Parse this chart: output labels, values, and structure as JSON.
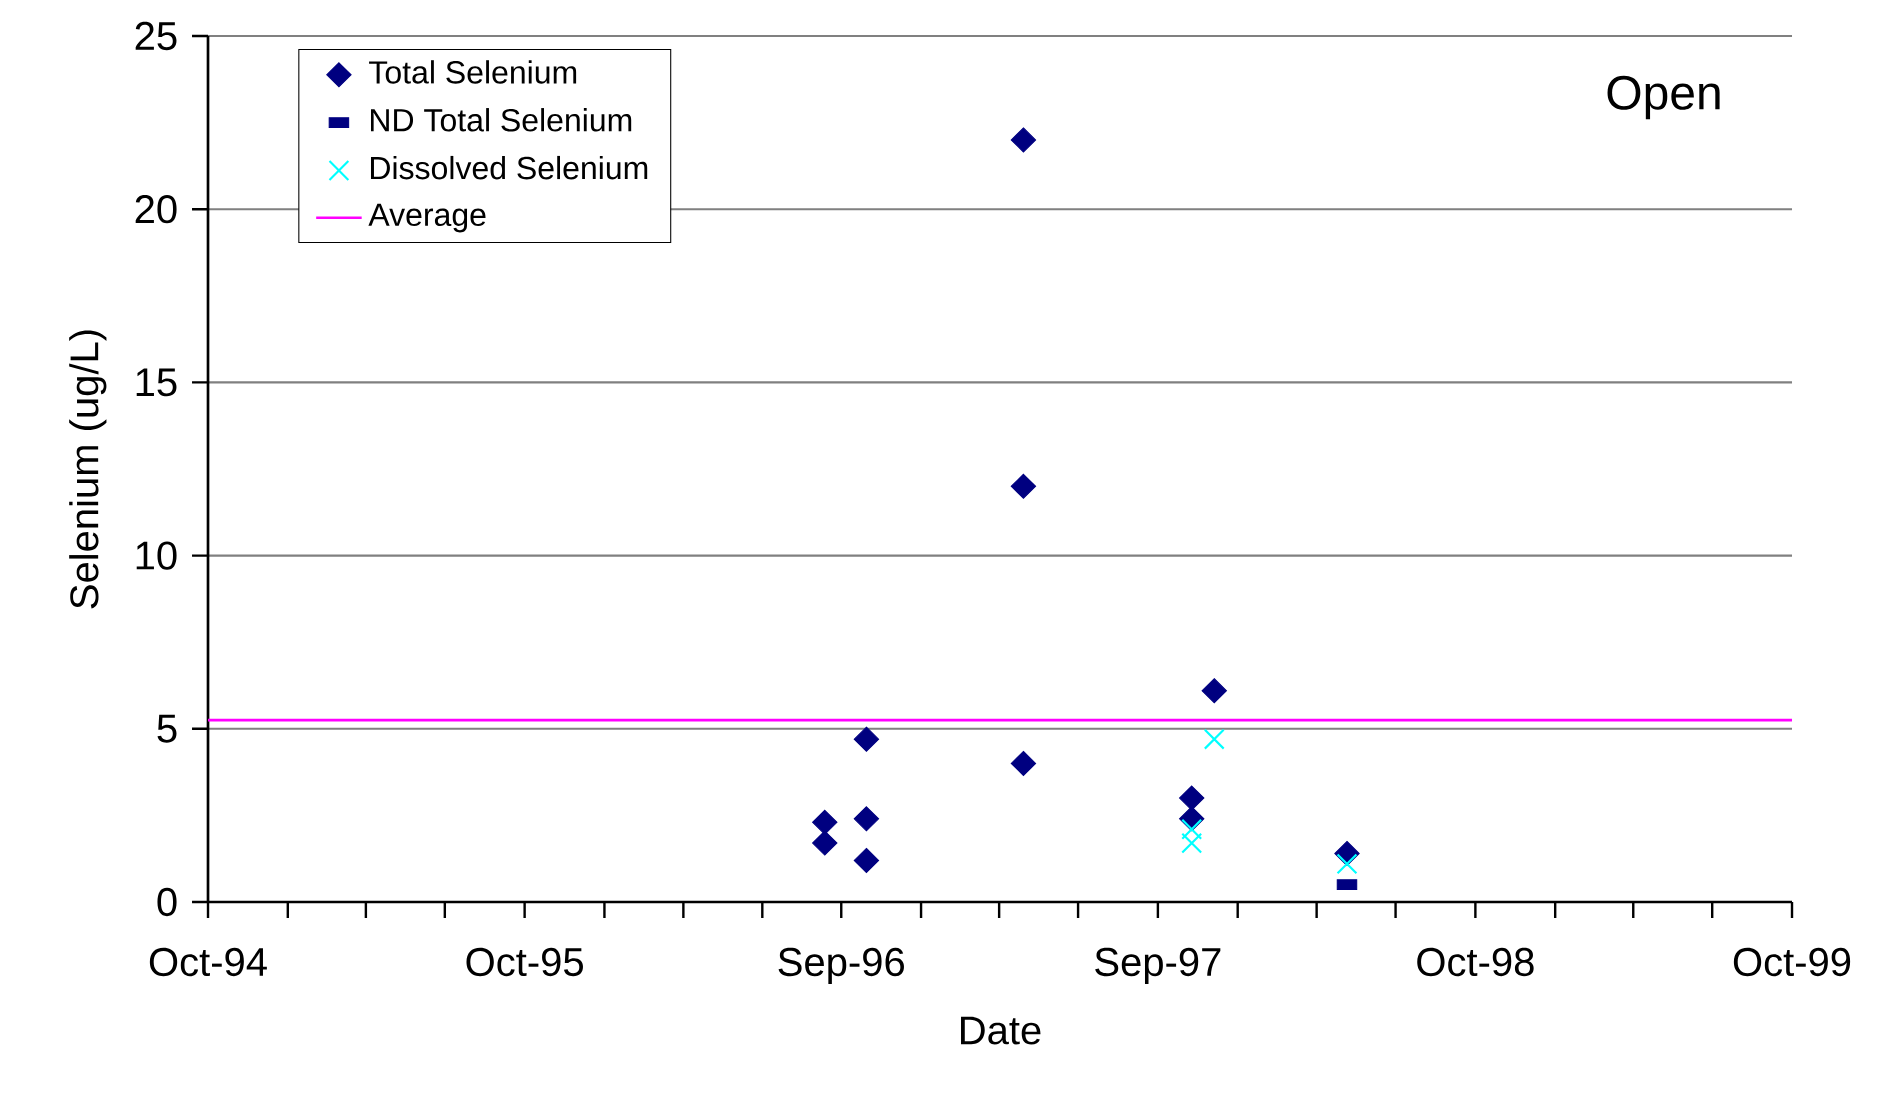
{
  "chart_data": {
    "type": "scatter",
    "xlabel": "Date",
    "ylabel": "Selenium (ug/L)",
    "annotations": [
      "Open"
    ],
    "series": [
      {
        "name": "Total Selenium",
        "color": "#000080",
        "marker": "diamond",
        "x": [
          "1996-09-11",
          "1996-09-11",
          "1996-10-29",
          "1996-10-29",
          "1996-10-29",
          "1997-04-28",
          "1997-04-28",
          "1997-04-28",
          "1997-11-08",
          "1997-11-08",
          "1997-12-04",
          "1998-05-06"
        ],
        "values": [
          2.3,
          1.7,
          4.7,
          2.4,
          1.2,
          22,
          12,
          4,
          3,
          2.4,
          6.1,
          1.4
        ]
      },
      {
        "name": "ND Total Selenium",
        "color": "#000080",
        "marker": "square",
        "x": [
          "1998-05-06"
        ],
        "values": [
          0.5
        ]
      },
      {
        "name": "Dissolved Selenium",
        "color": "#00ffff",
        "marker": "cross",
        "x": [
          "1997-11-08",
          "1997-11-08",
          "1997-12-04",
          "1998-05-06"
        ],
        "values": [
          2.1,
          1.7,
          4.7,
          1.1
        ]
      }
    ],
    "ref_lines": [
      {
        "axis": "y",
        "value": 5.25,
        "label": "Average",
        "color": "#ff00ff"
      }
    ],
    "xlim": [
      "1994-10-01",
      "1999-10-01"
    ],
    "xticks": [
      {
        "value": "1994-10-01",
        "label": "Oct-94"
      },
      {
        "value": "1995-01-01",
        "label": null
      },
      {
        "value": "1995-04-01",
        "label": null
      },
      {
        "value": "1995-07-01",
        "label": null
      },
      {
        "value": "1995-10-01",
        "label": "Oct-95"
      },
      {
        "value": "1996-01-01",
        "label": null
      },
      {
        "value": "1996-04-01",
        "label": null
      },
      {
        "value": "1996-07-01",
        "label": null
      },
      {
        "value": "1996-09-30",
        "label": "Sep-96"
      },
      {
        "value": "1996-12-31",
        "label": null
      },
      {
        "value": "1997-03-31",
        "label": null
      },
      {
        "value": "1997-06-30",
        "label": null
      },
      {
        "value": "1997-09-30",
        "label": "Sep-97"
      },
      {
        "value": "1997-12-31",
        "label": null
      },
      {
        "value": "1998-04-01",
        "label": null
      },
      {
        "value": "1998-07-01",
        "label": null
      },
      {
        "value": "1998-10-01",
        "label": "Oct-98"
      },
      {
        "value": "1999-01-01",
        "label": null
      },
      {
        "value": "1999-04-01",
        "label": null
      },
      {
        "value": "1999-07-01",
        "label": null
      },
      {
        "value": "1999-10-01",
        "label": "Oct-99"
      }
    ],
    "ylim": [
      0,
      25
    ],
    "yticks": [
      0,
      5,
      10,
      15,
      20,
      25
    ],
    "grid": "y",
    "legend": "top left"
  }
}
